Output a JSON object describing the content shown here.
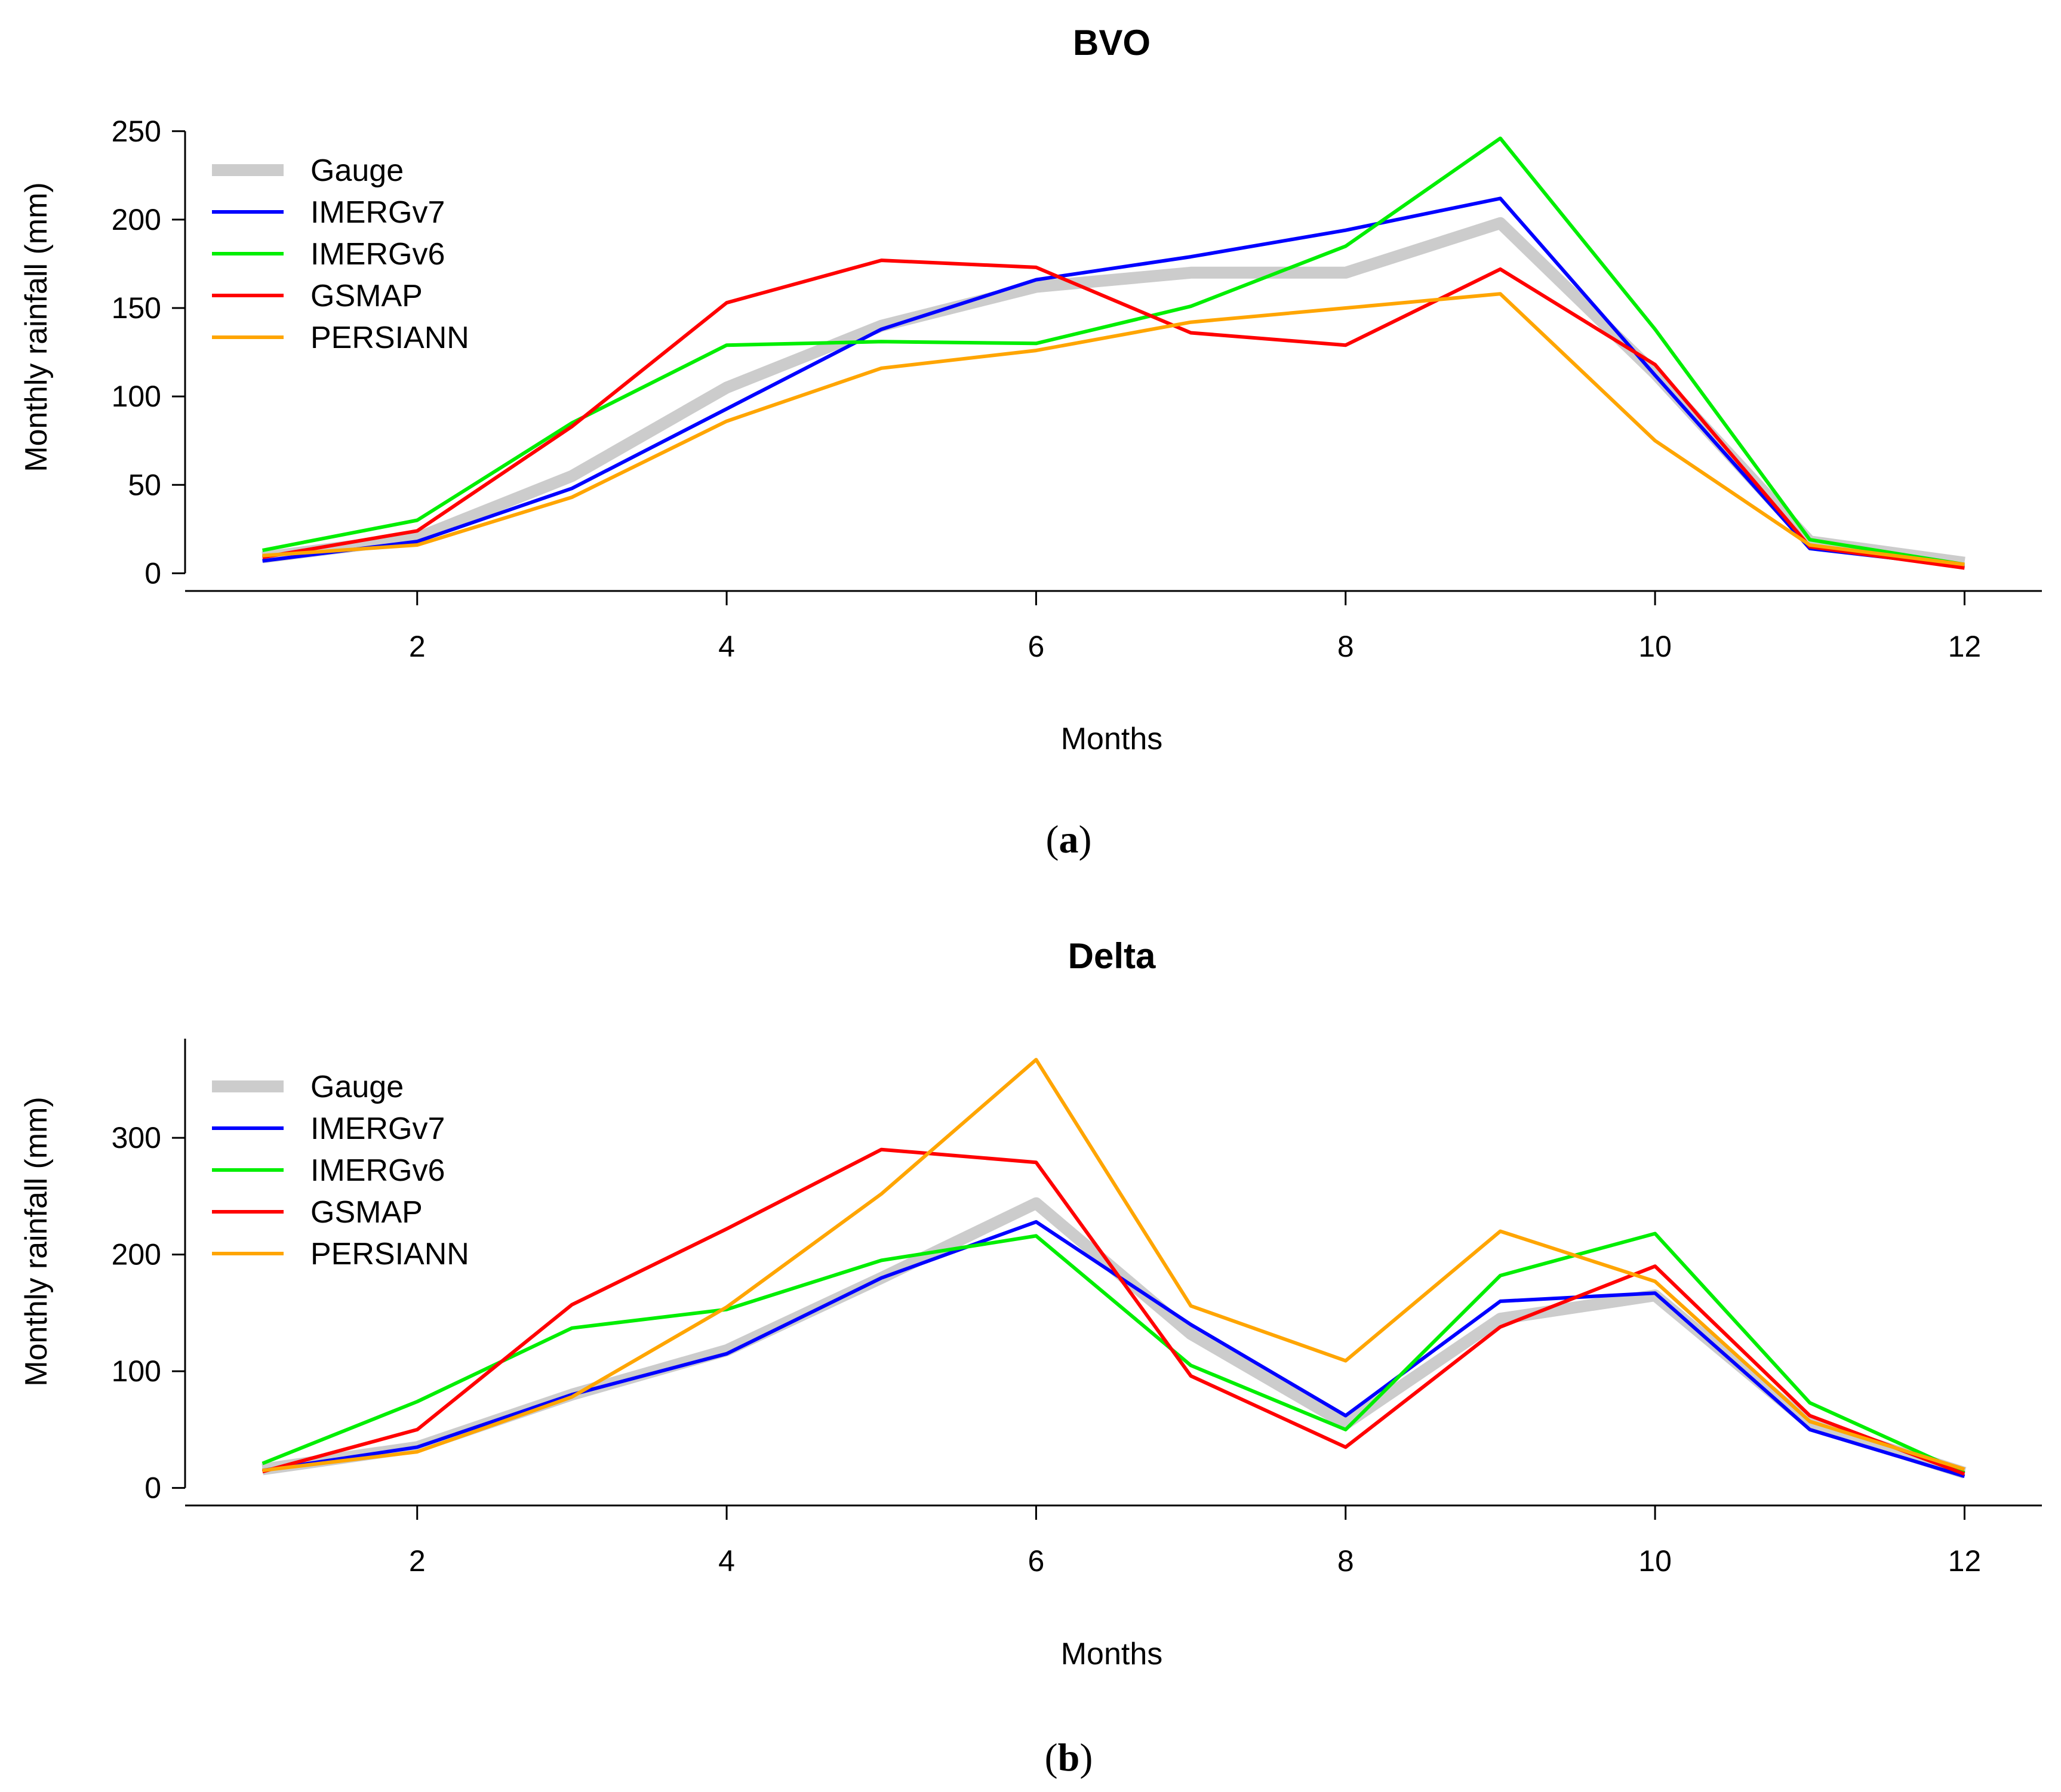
{
  "chart_data": [
    {
      "type": "line",
      "title": "BVO",
      "xlabel": "Months",
      "ylabel": "Monthly rainfall (mm)",
      "caption": {
        "open": "(",
        "letter": "a",
        "close": ")"
      },
      "x": [
        1,
        2,
        3,
        4,
        5,
        6,
        7,
        8,
        9,
        10,
        11,
        12
      ],
      "xticks": [
        2,
        4,
        6,
        8,
        10,
        12
      ],
      "xticklabels": [
        "2",
        "4",
        "6",
        "8",
        "10",
        "12"
      ],
      "xlim": [
        0.5,
        12.5
      ],
      "yticks": [
        0,
        50,
        100,
        150,
        200,
        250
      ],
      "yticklabels": [
        "0",
        "50",
        "100",
        "150",
        "200",
        "250"
      ],
      "ylim": [
        -10,
        255
      ],
      "ymax_axis": 250,
      "legend_position": "top-left",
      "series": [
        {
          "name": "Gauge",
          "color": "#cccccc",
          "style": "thick",
          "values": [
            9,
            20,
            55,
            105,
            140,
            162,
            170,
            170,
            198,
            113,
            18,
            6
          ]
        },
        {
          "name": "IMERGv7",
          "color": "#0000ff",
          "style": "thin",
          "values": [
            7,
            18,
            48,
            93,
            138,
            166,
            179,
            194,
            212,
            112,
            14,
            4
          ]
        },
        {
          "name": "IMERGv6",
          "color": "#00ee00",
          "style": "thin",
          "values": [
            13,
            30,
            85,
            129,
            131,
            130,
            151,
            185,
            246,
            138,
            19,
            5
          ]
        },
        {
          "name": "GSMAP",
          "color": "#ff0000",
          "style": "thin",
          "values": [
            9,
            24,
            83,
            153,
            177,
            173,
            136,
            129,
            172,
            118,
            15,
            3
          ]
        },
        {
          "name": "PERSIANN",
          "color": "#ffa500",
          "style": "thin",
          "values": [
            10,
            16,
            43,
            86,
            116,
            126,
            142,
            150,
            158,
            75,
            16,
            5
          ]
        }
      ]
    },
    {
      "type": "line",
      "title": "Delta",
      "xlabel": "Months",
      "ylabel": "Monthly rainfall (mm)",
      "caption": {
        "open": "(",
        "letter": "b",
        "close": ")"
      },
      "x": [
        1,
        2,
        3,
        4,
        5,
        6,
        7,
        8,
        9,
        10,
        11,
        12
      ],
      "xticks": [
        2,
        4,
        6,
        8,
        10,
        12
      ],
      "xticklabels": [
        "2",
        "4",
        "6",
        "8",
        "10",
        "12"
      ],
      "xlim": [
        0.5,
        12.5
      ],
      "yticks": [
        0,
        100,
        200,
        300
      ],
      "yticklabels": [
        "0",
        "100",
        "200",
        "300"
      ],
      "ylim": [
        -15,
        385
      ],
      "ymax_axis": 385,
      "legend_position": "top-left",
      "series": [
        {
          "name": "Gauge",
          "color": "#cccccc",
          "style": "thick",
          "values": [
            16,
            35,
            80,
            118,
            180,
            244,
            132,
            55,
            145,
            165,
            55,
            13
          ]
        },
        {
          "name": "IMERGv7",
          "color": "#0000ff",
          "style": "thin",
          "values": [
            15,
            35,
            80,
            115,
            180,
            228,
            140,
            62,
            160,
            167,
            50,
            10
          ]
        },
        {
          "name": "IMERGv6",
          "color": "#00ee00",
          "style": "thin",
          "values": [
            21,
            74,
            137,
            153,
            195,
            216,
            105,
            50,
            182,
            218,
            73,
            13
          ]
        },
        {
          "name": "GSMAP",
          "color": "#ff0000",
          "style": "thin",
          "values": [
            14,
            50,
            157,
            222,
            290,
            279,
            96,
            35,
            138,
            190,
            62,
            12
          ]
        },
        {
          "name": "PERSIANN",
          "color": "#ffa500",
          "style": "thin",
          "values": [
            15,
            31,
            78,
            155,
            252,
            367,
            156,
            109,
            220,
            177,
            57,
            16
          ]
        }
      ]
    }
  ]
}
